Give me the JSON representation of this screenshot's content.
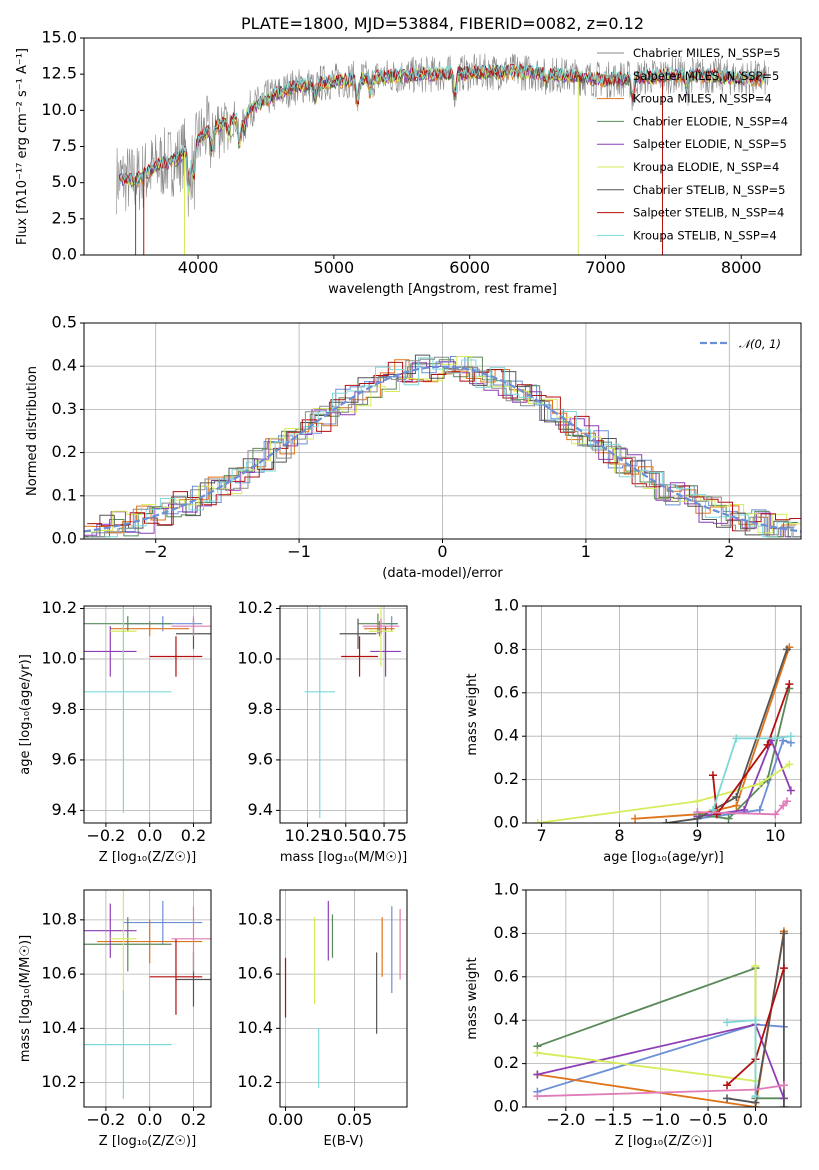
{
  "colors": {
    "c0": "#6b8fd6",
    "c1": "#e0741b",
    "c2": "#5a8a5a",
    "c3": "#8e3fb5",
    "c4": "#d7ec5a",
    "c5": "#555555",
    "c6": "#b30f0f",
    "c7": "#7fd8d8",
    "c8": "#e07ab8",
    "c9": "#8a8a8a",
    "normal": "#6b8fd6",
    "grid": "#b0b0b0"
  },
  "chart_data": [
    {
      "id": "spectrum",
      "type": "line",
      "title": "PLATE=1800, MJD=53884, FIBERID=0082, z=0.12",
      "xlabel": "wavelength [Angstrom, rest frame]",
      "ylabel": "Flux [fλ10⁻¹⁷ erg cm⁻² s⁻¹ A⁻¹]",
      "xlim": [
        3160,
        8440
      ],
      "ylim": [
        0,
        15
      ],
      "xticks": [
        "4000",
        "5000",
        "6000",
        "7000",
        "8000"
      ],
      "yticks": [
        "0.0",
        "2.5",
        "5.0",
        "7.5",
        "10.0",
        "12.5",
        "15.0"
      ],
      "grid": false,
      "legend_position": "upper right",
      "series": [
        {
          "name": "Chabrier MILES, N_SSP=5",
          "color": "c9"
        },
        {
          "name": "Salpeter MILES, N_SSP=5",
          "color": "c9"
        },
        {
          "name": "Kroupa MILES, N_SSP=4",
          "color": "c1"
        },
        {
          "name": "Chabrier ELODIE, N_SSP=4",
          "color": "c2"
        },
        {
          "name": "Salpeter ELODIE, N_SSP=5",
          "color": "c3"
        },
        {
          "name": "Kroupa ELODIE, N_SSP=4",
          "color": "c4"
        },
        {
          "name": "Chabrier STELIB, N_SSP=5",
          "color": "c5"
        },
        {
          "name": "Salpeter STELIB, N_SSP=4",
          "color": "c6"
        },
        {
          "name": "Kroupa STELIB, N_SSP=4",
          "color": "c7"
        }
      ],
      "continuum": [
        [
          3400,
          5.3
        ],
        [
          3550,
          5.2
        ],
        [
          3700,
          6.2
        ],
        [
          3850,
          6.6
        ],
        [
          3950,
          7.6
        ],
        [
          4100,
          8.8
        ],
        [
          4300,
          9.6
        ],
        [
          4500,
          10.8
        ],
        [
          4700,
          11.6
        ],
        [
          5000,
          12.0
        ],
        [
          5200,
          12.2
        ],
        [
          5500,
          12.4
        ],
        [
          6000,
          12.6
        ],
        [
          6300,
          12.7
        ],
        [
          6600,
          12.5
        ],
        [
          7000,
          12.1
        ],
        [
          7300,
          12.3
        ],
        [
          7600,
          12.5
        ],
        [
          8000,
          12.2
        ],
        [
          8200,
          12.2
        ]
      ],
      "absorption_features": [
        [
          3934,
          3.0
        ],
        [
          3968,
          2.5
        ],
        [
          4102,
          1.5
        ],
        [
          4227,
          1.0
        ],
        [
          4304,
          2.0
        ],
        [
          4340,
          1.2
        ],
        [
          4861,
          1.0
        ],
        [
          5175,
          1.6
        ],
        [
          5270,
          0.9
        ],
        [
          5893,
          1.5
        ],
        [
          6563,
          0.6
        ],
        [
          7200,
          1.4
        ],
        [
          7600,
          1.2
        ]
      ],
      "spikes": [
        [
          3540,
          0
        ],
        [
          3600,
          0
        ],
        [
          3900,
          0
        ],
        [
          6800,
          0
        ],
        [
          7420,
          0
        ]
      ]
    },
    {
      "id": "residuals",
      "type": "line",
      "xlabel": "(data-model)/error",
      "ylabel": "Normed distribution",
      "xlim": [
        -2.5,
        2.5
      ],
      "ylim": [
        0,
        0.5
      ],
      "xticks": [
        "−2",
        "−1",
        "0",
        "1",
        "2"
      ],
      "yticks": [
        "0.0",
        "0.1",
        "0.2",
        "0.3",
        "0.4",
        "0.5"
      ],
      "grid": true,
      "legend_position": "upper right",
      "normal_label": "𝒩(0, 1)",
      "bin_width": 0.1,
      "series_colors": [
        "c0",
        "c1",
        "c2",
        "c3",
        "c4",
        "c5",
        "c6",
        "c7",
        "c9"
      ]
    },
    {
      "id": "age_vs_Z",
      "type": "scatter",
      "xlabel": "Z [log₁₀(Z/Z☉)]",
      "ylabel": "age  [log₁₀(age/yr)]",
      "xlim": [
        -0.3,
        0.28
      ],
      "ylim": [
        9.35,
        10.21
      ],
      "xticks": [
        "−0.2",
        "0.0",
        "0.2"
      ],
      "yticks": [
        "9.4",
        "9.6",
        "9.8",
        "10.0",
        "10.2"
      ],
      "grid": true,
      "points": [
        {
          "x": 0.06,
          "y": 10.14,
          "xerr": 0.18,
          "yerr": 0.03,
          "color": "c0"
        },
        {
          "x": 0.0,
          "y": 10.12,
          "xerr": 0.18,
          "yerr": 0.03,
          "color": "c1"
        },
        {
          "x": -0.1,
          "y": 10.14,
          "xerr": 0.2,
          "yerr": 0.03,
          "color": "c2"
        },
        {
          "x": -0.18,
          "y": 10.03,
          "xerr": 0.12,
          "yerr": 0.1,
          "color": "c3"
        },
        {
          "x": -0.12,
          "y": 10.11,
          "xerr": 0.06,
          "yerr": 0.14,
          "color": "c4"
        },
        {
          "x": 0.2,
          "y": 10.1,
          "xerr": 0.08,
          "yerr": 0.06,
          "color": "c5"
        },
        {
          "x": 0.12,
          "y": 10.01,
          "xerr": 0.12,
          "yerr": 0.08,
          "color": "c6"
        },
        {
          "x": -0.12,
          "y": 9.87,
          "xerr": 0.22,
          "yerr": 0.48,
          "color": "c7"
        },
        {
          "x": 0.2,
          "y": 10.13,
          "xerr": 0.1,
          "yerr": 0.04,
          "color": "c8"
        }
      ]
    },
    {
      "id": "age_vs_mass",
      "type": "scatter",
      "xlabel": "mass [log₁₀(M/M☉)]",
      "ylabel": "",
      "xlim": [
        10.07,
        10.9
      ],
      "ylim": [
        9.35,
        10.21
      ],
      "xticks": [
        "10.25",
        "10.50",
        "10.75"
      ],
      "yticks": [
        "9.4",
        "9.6",
        "9.8",
        "10.0",
        "10.2"
      ],
      "grid": true,
      "points": [
        {
          "x": 10.8,
          "y": 10.14,
          "xerr": 0.04,
          "yerr": 0.03,
          "color": "c0"
        },
        {
          "x": 10.72,
          "y": 10.12,
          "xerr": 0.1,
          "yerr": 0.03,
          "color": "c1"
        },
        {
          "x": 10.71,
          "y": 10.14,
          "xerr": 0.13,
          "yerr": 0.04,
          "color": "c2"
        },
        {
          "x": 10.76,
          "y": 10.03,
          "xerr": 0.1,
          "yerr": 0.1,
          "color": "c3"
        },
        {
          "x": 10.73,
          "y": 10.11,
          "xerr": 0.08,
          "yerr": 0.14,
          "color": "c4"
        },
        {
          "x": 10.58,
          "y": 10.1,
          "xerr": 0.12,
          "yerr": 0.06,
          "color": "c5"
        },
        {
          "x": 10.59,
          "y": 10.01,
          "xerr": 0.12,
          "yerr": 0.08,
          "color": "c6"
        },
        {
          "x": 10.33,
          "y": 9.87,
          "xerr": 0.1,
          "yerr": 0.5,
          "color": "c7"
        },
        {
          "x": 10.73,
          "y": 10.13,
          "xerr": 0.12,
          "yerr": 0.03,
          "color": "c8"
        }
      ]
    },
    {
      "id": "massweight_vs_age",
      "type": "line",
      "xlabel": "age  [log₁₀(age/yr)]",
      "ylabel": "mass weight",
      "xlim": [
        6.8,
        10.33
      ],
      "ylim": [
        0,
        1
      ],
      "xticks": [
        "7",
        "8",
        "9",
        "10"
      ],
      "yticks": [
        "0.0",
        "0.2",
        "0.4",
        "0.6",
        "0.8",
        "1.0"
      ],
      "grid": true,
      "series": [
        {
          "color": "c0",
          "points": [
            [
              9.0,
              0.02
            ],
            [
              9.8,
              0.06
            ],
            [
              10.1,
              0.38
            ],
            [
              10.2,
              0.37
            ]
          ]
        },
        {
          "color": "c1",
          "points": [
            [
              8.2,
              0.02
            ],
            [
              9.0,
              0.04
            ],
            [
              9.5,
              0.08
            ],
            [
              10.18,
              0.81
            ]
          ]
        },
        {
          "color": "c2",
          "points": [
            [
              9.0,
              0.04
            ],
            [
              9.4,
              0.02
            ],
            [
              9.9,
              0.2
            ],
            [
              10.18,
              0.62
            ]
          ]
        },
        {
          "color": "c3",
          "points": [
            [
              9.0,
              0.03
            ],
            [
              9.6,
              0.06
            ],
            [
              9.95,
              0.38
            ],
            [
              10.2,
              0.15
            ]
          ]
        },
        {
          "color": "c4",
          "points": [
            [
              6.95,
              0.0
            ],
            [
              9.0,
              0.1
            ],
            [
              9.8,
              0.18
            ],
            [
              10.18,
              0.27
            ]
          ]
        },
        {
          "color": "c5",
          "points": [
            [
              8.6,
              0.0
            ],
            [
              9.0,
              0.02
            ],
            [
              9.5,
              0.12
            ],
            [
              10.15,
              0.8
            ]
          ]
        },
        {
          "color": "c6",
          "points": [
            [
              9.2,
              0.22
            ],
            [
              9.25,
              0.04
            ],
            [
              9.9,
              0.36
            ],
            [
              10.18,
              0.64
            ]
          ]
        },
        {
          "color": "c7",
          "points": [
            [
              9.2,
              0.06
            ],
            [
              9.5,
              0.39
            ],
            [
              10.0,
              0.39
            ],
            [
              10.2,
              0.4
            ]
          ]
        },
        {
          "color": "c8",
          "points": [
            [
              9.0,
              0.05
            ],
            [
              10.0,
              0.04
            ],
            [
              10.1,
              0.08
            ],
            [
              10.15,
              0.1
            ]
          ]
        }
      ]
    },
    {
      "id": "mass_vs_Z",
      "type": "scatter",
      "xlabel": "Z [log₁₀(Z/Z☉)]",
      "ylabel": "mass [log₁₀(M/M☉)]",
      "xlim": [
        -0.3,
        0.28
      ],
      "ylim": [
        10.11,
        10.91
      ],
      "xticks": [
        "−0.2",
        "0.0",
        "0.2"
      ],
      "yticks": [
        "10.2",
        "10.4",
        "10.6",
        "10.8"
      ],
      "grid": true,
      "points": [
        {
          "x": 0.06,
          "y": 10.79,
          "xerr": 0.18,
          "yerr": 0.08,
          "color": "c0"
        },
        {
          "x": 0.0,
          "y": 10.72,
          "xerr": 0.24,
          "yerr": 0.08,
          "color": "c1"
        },
        {
          "x": -0.1,
          "y": 10.71,
          "xerr": 0.2,
          "yerr": 0.1,
          "color": "c2"
        },
        {
          "x": -0.18,
          "y": 10.76,
          "xerr": 0.12,
          "yerr": 0.1,
          "color": "c3"
        },
        {
          "x": -0.12,
          "y": 10.73,
          "xerr": 0.06,
          "yerr": 0.22,
          "color": "c4"
        },
        {
          "x": 0.2,
          "y": 10.58,
          "xerr": 0.08,
          "yerr": 0.1,
          "color": "c5"
        },
        {
          "x": 0.12,
          "y": 10.59,
          "xerr": 0.12,
          "yerr": 0.14,
          "color": "c6"
        },
        {
          "x": -0.12,
          "y": 10.34,
          "xerr": 0.22,
          "yerr": 0.2,
          "color": "c7"
        },
        {
          "x": 0.2,
          "y": 10.73,
          "xerr": 0.1,
          "yerr": 0.12,
          "color": "c8"
        }
      ]
    },
    {
      "id": "mass_vs_ebv",
      "type": "scatter",
      "xlabel": "E(B-V)",
      "ylabel": "",
      "xlim": [
        -0.004,
        0.088
      ],
      "ylim": [
        10.11,
        10.91
      ],
      "xticks": [
        "0.00",
        "0.05"
      ],
      "yticks": [
        "10.2",
        "10.4",
        "10.6",
        "10.8"
      ],
      "grid": true,
      "points": [
        {
          "x": 0.077,
          "y": 10.69,
          "xerr": 0,
          "yerr": 0.16,
          "color": "c0"
        },
        {
          "x": 0.07,
          "y": 10.7,
          "xerr": 0,
          "yerr": 0.11,
          "color": "c1"
        },
        {
          "x": 0.034,
          "y": 10.74,
          "xerr": 0,
          "yerr": 0.08,
          "color": "c2"
        },
        {
          "x": 0.031,
          "y": 10.76,
          "xerr": 0,
          "yerr": 0.11,
          "color": "c3"
        },
        {
          "x": 0.021,
          "y": 10.65,
          "xerr": 0,
          "yerr": 0.16,
          "color": "c4"
        },
        {
          "x": 0.066,
          "y": 10.53,
          "xerr": 0,
          "yerr": 0.15,
          "color": "c5"
        },
        {
          "x": 0.0,
          "y": 10.55,
          "xerr": 0,
          "yerr": 0.11,
          "color": "c6"
        },
        {
          "x": 0.024,
          "y": 10.29,
          "xerr": 0,
          "yerr": 0.11,
          "color": "c7"
        },
        {
          "x": 0.083,
          "y": 10.71,
          "xerr": 0,
          "yerr": 0.13,
          "color": "c8"
        }
      ]
    },
    {
      "id": "massweight_vs_Z",
      "type": "line",
      "xlabel": "Z [log₁₀(Z/Z☉)]",
      "ylabel": "mass weight",
      "xlim": [
        -2.42,
        0.48
      ],
      "ylim": [
        0,
        1
      ],
      "xticks": [
        "−2.0",
        "−1.5",
        "−1.0",
        "−0.5",
        "0.0"
      ],
      "yticks": [
        "0.0",
        "0.2",
        "0.4",
        "0.6",
        "0.8",
        "1.0"
      ],
      "grid": true,
      "series": [
        {
          "color": "c0",
          "points": [
            [
              -2.3,
              0.07
            ],
            [
              0.0,
              0.38
            ],
            [
              0.3,
              0.37
            ]
          ]
        },
        {
          "color": "c1",
          "points": [
            [
              -2.3,
              0.15
            ],
            [
              0.0,
              0.0
            ],
            [
              0.3,
              0.81
            ]
          ]
        },
        {
          "color": "c2",
          "points": [
            [
              -2.3,
              0.28
            ],
            [
              0.0,
              0.64
            ],
            [
              0.0,
              0.04
            ],
            [
              0.3,
              0.04
            ]
          ]
        },
        {
          "color": "c3",
          "points": [
            [
              -2.3,
              0.15
            ],
            [
              0.0,
              0.38
            ],
            [
              0.3,
              0.04
            ]
          ]
        },
        {
          "color": "c4",
          "points": [
            [
              -2.3,
              0.25
            ],
            [
              0.0,
              0.12
            ],
            [
              0.0,
              0.65
            ]
          ]
        },
        {
          "color": "c5",
          "points": [
            [
              -0.3,
              0.04
            ],
            [
              0.0,
              0.02
            ],
            [
              0.3,
              0.8
            ],
            [
              0.3,
              0.0
            ]
          ]
        },
        {
          "color": "c6",
          "points": [
            [
              -0.3,
              0.1
            ],
            [
              0.0,
              0.22
            ],
            [
              0.3,
              0.64
            ]
          ]
        },
        {
          "color": "c7",
          "points": [
            [
              -0.3,
              0.39
            ],
            [
              0.0,
              0.4
            ],
            [
              0.0,
              0.05
            ]
          ]
        },
        {
          "color": "c8",
          "points": [
            [
              -2.3,
              0.05
            ],
            [
              0.0,
              0.08
            ],
            [
              0.3,
              0.1
            ]
          ]
        }
      ]
    }
  ]
}
